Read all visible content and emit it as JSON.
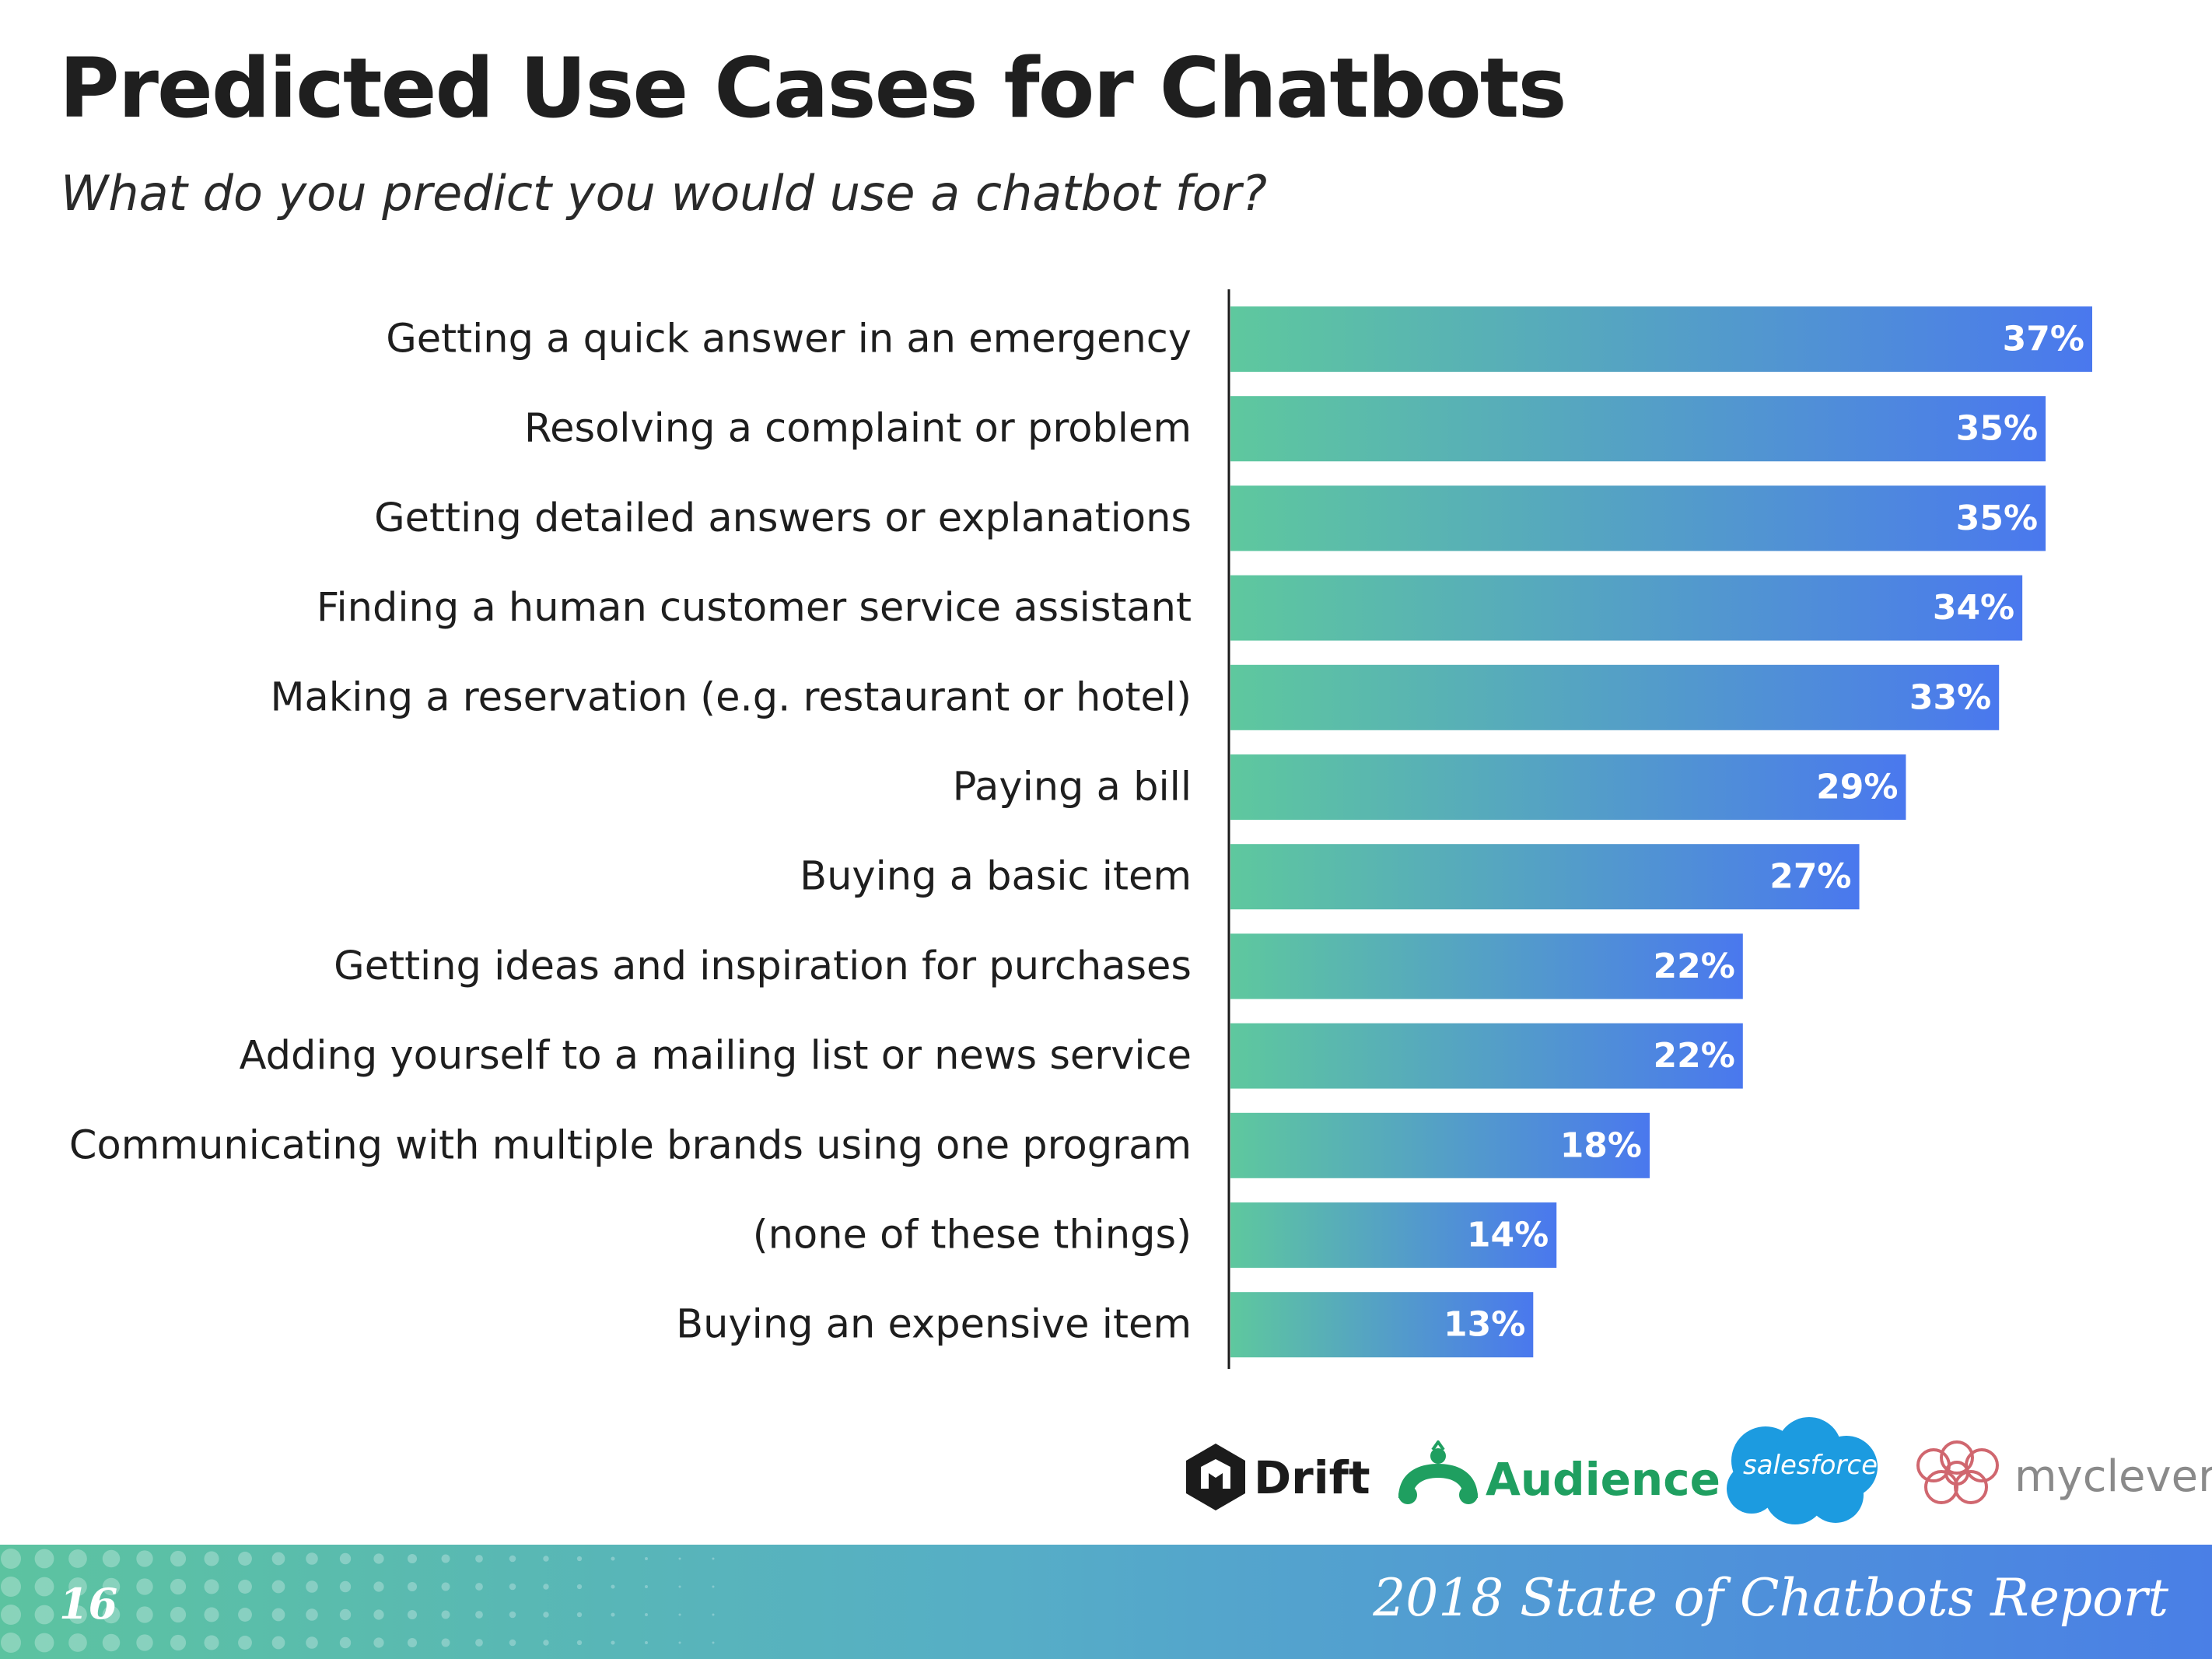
{
  "page": {
    "title": "Predicted Use Cases for Chatbots",
    "subtitle": "What do you predict you would use a chatbot for?"
  },
  "chart_data": {
    "type": "bar",
    "orientation": "horizontal",
    "categories": [
      "Getting a quick answer in an emergency",
      "Resolving a complaint or problem",
      "Getting detailed answers or explanations",
      "Finding a human customer service assistant",
      "Making a reservation (e.g. restaurant or hotel)",
      "Paying a bill",
      "Buying a basic item",
      "Getting ideas and inspiration for purchases",
      "Adding yourself to a mailing list or news service",
      "Communicating with multiple brands using one program",
      "(none of these things)",
      "Buying an expensive item"
    ],
    "values": [
      37,
      35,
      35,
      34,
      33,
      29,
      27,
      22,
      22,
      18,
      14,
      13
    ],
    "labels": [
      "37%",
      "35%",
      "35%",
      "34%",
      "33%",
      "29%",
      "27%",
      "22%",
      "22%",
      "18%",
      "14%",
      "13%"
    ],
    "title": "Predicted Use Cases for Chatbots",
    "xlabel": "",
    "ylabel": "",
    "xlim": [
      0,
      37
    ],
    "grid": false,
    "legend": "none",
    "gradient": [
      "#5ec89e",
      "#4a78ee"
    ]
  },
  "logos": {
    "drift": "Drift",
    "audience": "Audience",
    "salesforce": "salesforce",
    "myclever": "myclever"
  },
  "footer": {
    "page_number": "16",
    "report_title": "2018 State of Chatbots Report"
  }
}
